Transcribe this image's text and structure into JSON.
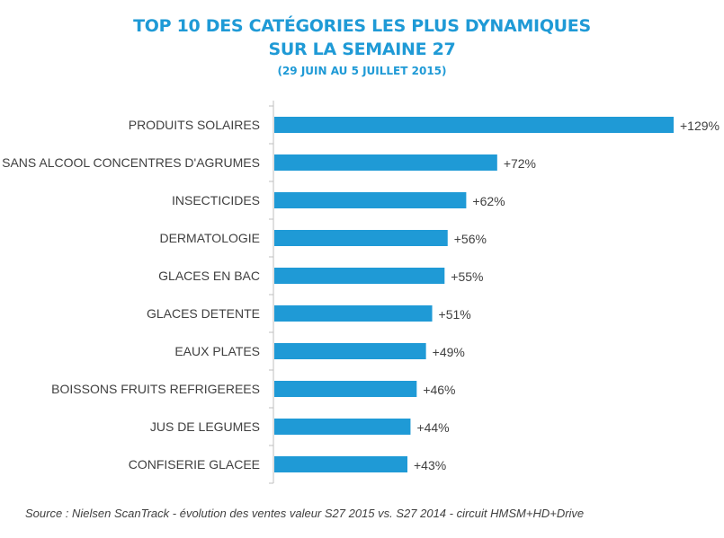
{
  "header": {
    "title_line1": "TOP 10 DES CATÉGORIES LES PLUS DYNAMIQUES",
    "title_line2": "SUR LA SEMAINE 27",
    "subtitle": "(29 JUIN AU 5 JUILLET 2015)"
  },
  "footer": {
    "source": "Source : Nielsen ScanTrack - évolution des ventes valeur S27 2015 vs. S27 2014 - circuit HMSM+HD+Drive"
  },
  "colors": {
    "bar": "#1f9ad6",
    "axis": "#bfbfbf",
    "text": "#404040"
  },
  "chart_data": {
    "type": "bar",
    "orientation": "horizontal",
    "title": "TOP 10 DES CATÉGORIES LES PLUS DYNAMIQUES SUR LA SEMAINE 27",
    "subtitle": "(29 JUIN AU 5 JUILLET 2015)",
    "categories": [
      "PRODUITS SOLAIRES",
      "SANS ALCOOL CONCENTRES D'AGRUMES",
      "INSECTICIDES",
      "DERMATOLOGIE",
      "GLACES EN BAC",
      "GLACES DETENTE",
      "EAUX PLATES",
      "BOISSONS FRUITS REFRIGEREES",
      "JUS DE LEGUMES",
      "CONFISERIE GLACEE"
    ],
    "values": [
      129,
      72,
      62,
      56,
      55,
      51,
      49,
      46,
      44,
      43
    ],
    "data_labels": [
      "+129%",
      "+72%",
      "+62%",
      "+56%",
      "+55%",
      "+51%",
      "+49%",
      "+46%",
      "+44%",
      "+43%"
    ],
    "unit": "%",
    "xlabel": "",
    "ylabel": "",
    "xlim": [
      0,
      129
    ],
    "grid": false,
    "legend": "none"
  }
}
